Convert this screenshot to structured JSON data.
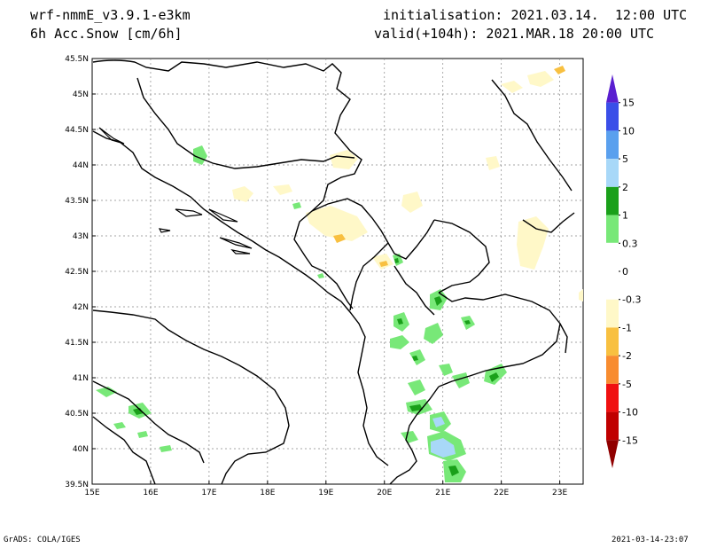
{
  "header": {
    "model": "wrf-nmmE_v3.9.1-e3km",
    "variable": "6h Acc.Snow [cm/6h]",
    "init": "initialisation: 2021.03.14.  12:00 UTC",
    "valid": "valid(+104h): 2021.MAR.18 20:00 UTC"
  },
  "map": {
    "lat_ticks": [
      "45.5N",
      "45N",
      "44.5N",
      "44N",
      "43.5N",
      "43N",
      "42.5N",
      "42N",
      "41.5N",
      "41N",
      "40.5N",
      "40N",
      "39.5N"
    ],
    "lon_ticks": [
      "15E",
      "16E",
      "17E",
      "18E",
      "19E",
      "20E",
      "21E",
      "22E",
      "23E"
    ],
    "grid": true
  },
  "colorbar": {
    "labels": [
      "15",
      "10",
      "5",
      "2",
      "1",
      "0.3",
      "0",
      "-0.3",
      "-1",
      "-2",
      "-5",
      "-10",
      "-15"
    ],
    "colors": [
      "#5a1fd0",
      "#3a4fe8",
      "#5aa0ee",
      "#a8d8f8",
      "#1aa01a",
      "#78e878",
      "#ffffff",
      "#ffffff",
      "#fff8c8",
      "#f8c040",
      "#f88c30",
      "#f01010",
      "#c00000",
      "#900000"
    ]
  },
  "footer": {
    "left": "GrADS: COLA/IGES",
    "right": "2021-03-14-23:07"
  }
}
